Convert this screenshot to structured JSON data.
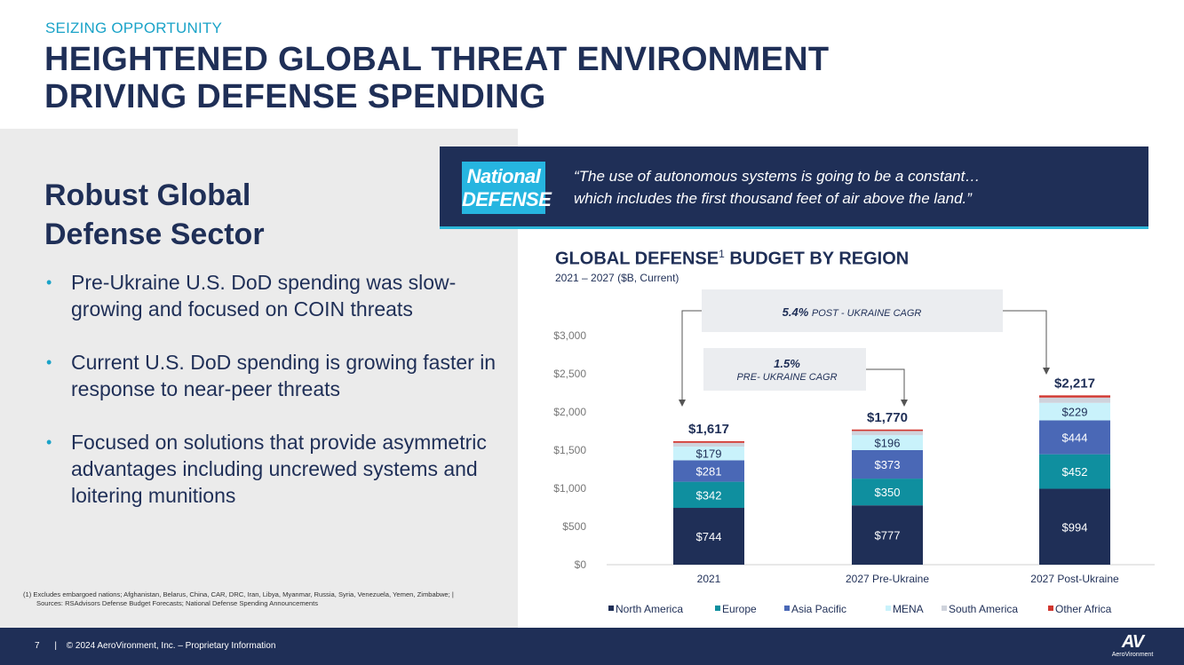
{
  "header": {
    "eyebrow": "SEIZING OPPORTUNITY",
    "title_line1": "HEIGHTENED GLOBAL THREAT ENVIRONMENT",
    "title_line2": "DRIVING DEFENSE SPENDING"
  },
  "left": {
    "heading_line1": "Robust Global",
    "heading_line2": "Defense Sector",
    "bullets": [
      "Pre-Ukraine U.S. DoD spending was slow-growing and focused on COIN threats",
      "Current U.S. DoD spending is growing faster in response to near-peer threats",
      "Focused on solutions that provide asymmetric advantages including uncrewed systems and loitering munitions"
    ],
    "bullet_symbol": "•",
    "footnote_line1": "(1)  Excludes embargoed nations; Afghanistan, Belarus, China, CAR, DRC, Iran, Libya, Myanmar, Russia, Syria, Venezuela, Yemen, Zimbabwe; |",
    "footnote_line2": "Sources: RSAdvisors Defense Budget Forecasts; National Defense Spending Announcements"
  },
  "quote": {
    "logo_line1": "National",
    "logo_line2": "DEFENSE",
    "line1": "“The use of autonomous systems is going to be a constant…",
    "line2": "which includes the first thousand feet of air above the land.”"
  },
  "chart_header": {
    "title_main": "GLOBAL DEFENSE",
    "title_sup": "1",
    "title_rest": " BUDGET BY REGION",
    "subtitle": "2021 – 2027 ($B, Current)"
  },
  "chart_data": {
    "type": "bar",
    "stacked": true,
    "categories": [
      "2021",
      "2027 Pre-Ukraine",
      "2027 Post-Ukraine"
    ],
    "series": [
      {
        "name": "North America",
        "values": [
          744,
          777,
          994
        ],
        "labels": [
          "$744",
          "$777",
          "$994"
        ],
        "color": "#1f2f57",
        "label_color": "#ffffff"
      },
      {
        "name": "Europe",
        "values": [
          342,
          350,
          452
        ],
        "labels": [
          "$342",
          "$350",
          "$452"
        ],
        "color": "#0f8f9f",
        "label_color": "#ffffff"
      },
      {
        "name": "Asia Pacific",
        "values": [
          281,
          373,
          444
        ],
        "labels": [
          "$281",
          "$373",
          "$444"
        ],
        "color": "#4a68b6",
        "label_color": "#ffffff"
      },
      {
        "name": "MENA",
        "values": [
          179,
          196,
          229
        ],
        "labels": [
          "$179",
          "$196",
          "$229"
        ],
        "color": "#c9f2fb",
        "label_color": "#1f2f57"
      },
      {
        "name": "South America",
        "values": [
          50,
          55,
          70
        ],
        "labels": [
          "",
          "",
          ""
        ],
        "color": "#cfd3dc",
        "label_color": "#1f2f57"
      },
      {
        "name": "Other Africa",
        "values": [
          21,
          19,
          28
        ],
        "labels": [
          "",
          "",
          ""
        ],
        "color": "#d1362f",
        "label_color": "#1f2f57"
      }
    ],
    "totals": [
      "$1,617",
      "$1,770",
      "$2,217"
    ],
    "y_ticks": [
      "$0",
      "$500",
      "$1,000",
      "$1,500",
      "$2,000",
      "$2,500",
      "$3,000"
    ],
    "y_tick_values": [
      0,
      500,
      1000,
      1500,
      2000,
      2500,
      3000
    ],
    "ylim": [
      0,
      3000
    ],
    "legend_position": "bottom",
    "grid": false,
    "annotations": [
      {
        "bold": "5.4%",
        "text": "POST - UKRAINE CAGR",
        "from": "2021",
        "to": "2027 Post-Ukraine"
      },
      {
        "bold": "1.5%",
        "text": "PRE- UKRAINE CAGR",
        "from": "2021",
        "to": "2027 Pre-Ukraine"
      }
    ]
  },
  "footer": {
    "page_number": "7",
    "separator": "|",
    "copyright": "© 2024 AeroVironment, Inc. – Proprietary Information",
    "logo_mark": "AV",
    "logo_word": "AeroVironment"
  }
}
